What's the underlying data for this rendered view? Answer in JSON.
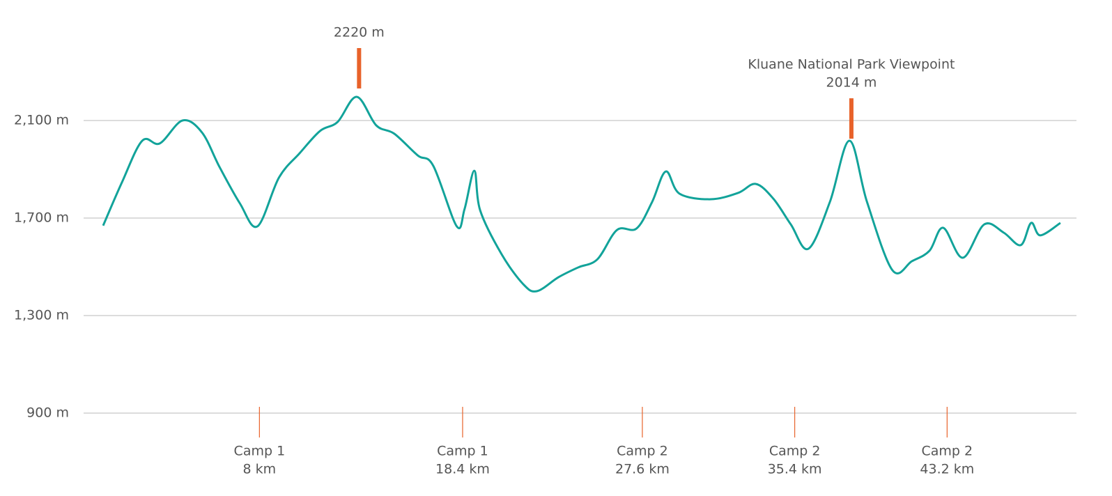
{
  "chart_data": {
    "type": "line",
    "color": "#12a39a",
    "marker_color": "#e8622a",
    "grid": true,
    "xlim": [
      -1,
      50
    ],
    "ylim": [
      900,
      2400
    ],
    "yticks": [
      {
        "value": 900,
        "label": "900 m"
      },
      {
        "value": 1300,
        "label": "1,300 m"
      },
      {
        "value": 1700,
        "label": "1,700 m"
      },
      {
        "value": 2100,
        "label": "2,100 m"
      }
    ],
    "camps": [
      {
        "value": 8,
        "name": "Camp 1",
        "label": "8 km"
      },
      {
        "value": 18.4,
        "name": "Camp 1",
        "label": "18.4 km"
      },
      {
        "value": 27.6,
        "name": "Camp 2",
        "label": "27.6 km"
      },
      {
        "value": 35.4,
        "name": "Camp 2",
        "label": "35.4 km"
      },
      {
        "value": 43.2,
        "name": "Camp 2",
        "label": "43.2 km"
      }
    ],
    "annotations": [
      {
        "x": 13.1,
        "value": 2220,
        "label": "2220 m"
      },
      {
        "x": 38.3,
        "value": 2014,
        "text": "Kluane National Park Viewpoint",
        "label": "2014 m"
      }
    ],
    "x": [
      0,
      0.96,
      2.0,
      2.9,
      4.06,
      5.06,
      5.96,
      7.0,
      7.9,
      9.0,
      10.06,
      11.1,
      12.0,
      12.98,
      13.98,
      14.9,
      16.1,
      16.9,
      18.1,
      18.5,
      19.0,
      19.3,
      20.4,
      21.5,
      22.2,
      23.3,
      24.3,
      25.3,
      26.3,
      27.3,
      28.1,
      28.8,
      29.5,
      31.1,
      32.5,
      33.4,
      34.3,
      35.2,
      36.1,
      37.2,
      38.2,
      39.1,
      40.4,
      41.4,
      42.3,
      43.0,
      44.0,
      45.1,
      46.1,
      46.97,
      47.5,
      47.97,
      49.0
    ],
    "values": [
      1669,
      1846,
      2017,
      2006,
      2100,
      2051,
      1909,
      1760,
      1666,
      1866,
      1966,
      2057,
      2094,
      2197,
      2080,
      2046,
      1957,
      1914,
      1666,
      1737,
      1894,
      1731,
      1551,
      1429,
      1400,
      1457,
      1497,
      1531,
      1651,
      1657,
      1766,
      1891,
      1800,
      1777,
      1803,
      1840,
      1780,
      1674,
      1574,
      1766,
      2017,
      1766,
      1486,
      1523,
      1566,
      1660,
      1537,
      1674,
      1640,
      1589,
      1680,
      1629,
      1680
    ]
  }
}
